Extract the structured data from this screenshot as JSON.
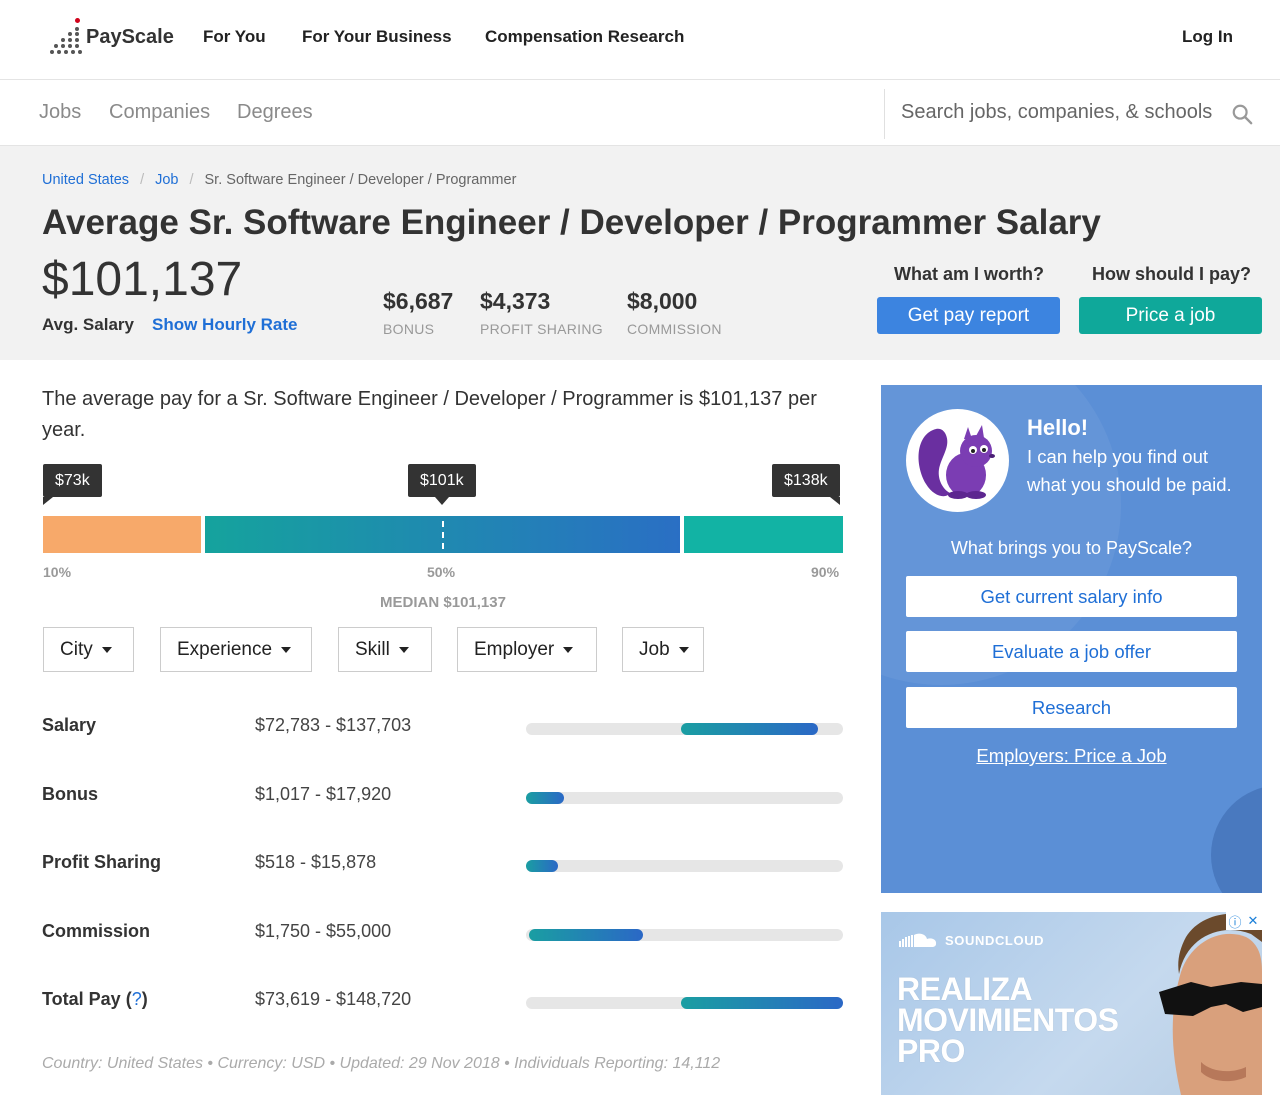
{
  "topnav": {
    "brand": "PayScale",
    "links": [
      "For You",
      "For Your Business",
      "Compensation Research"
    ],
    "login": "Log In"
  },
  "subnav": {
    "links": [
      "Jobs",
      "Companies",
      "Degrees"
    ],
    "search_placeholder": "Search jobs, companies, & schools"
  },
  "breadcrumb": {
    "items": [
      "United States",
      "Job"
    ],
    "current": "Sr. Software Engineer / Developer / Programmer"
  },
  "header": {
    "title": "Average Sr. Software Engineer / Developer / Programmer Salary",
    "avg_salary": "$101,137",
    "avg_label": "Avg. Salary",
    "hourly_link": "Show Hourly Rate",
    "stats": [
      {
        "value": "$6,687",
        "label": "BONUS"
      },
      {
        "value": "$4,373",
        "label": "PROFIT SHARING"
      },
      {
        "value": "$8,000",
        "label": "COMMISSION"
      }
    ],
    "cta": [
      {
        "question": "What am I worth?",
        "button": "Get pay report"
      },
      {
        "question": "How should I pay?",
        "button": "Price a job"
      }
    ]
  },
  "summary": "The average pay for a Sr. Software Engineer / Developer / Programmer is $101,137 per year.",
  "distribution": {
    "tooltips": {
      "low": "$73k",
      "mid": "$101k",
      "high": "$138k"
    },
    "percentiles": {
      "p10": "10%",
      "p50": "50%",
      "p90": "90%"
    },
    "median_label": "MEDIAN $101,137"
  },
  "filters": [
    "City",
    "Experience",
    "Skill",
    "Employer",
    "Job"
  ],
  "ranges": [
    {
      "label": "Salary",
      "range": "$72,783 - $137,703",
      "start": 0.49,
      "end": 0.92
    },
    {
      "label": "Bonus",
      "range": "$1,017 - $17,920",
      "start": 0.0,
      "end": 0.12
    },
    {
      "label": "Profit Sharing",
      "range": "$518 - $15,878",
      "start": 0.0,
      "end": 0.1
    },
    {
      "label": "Commission",
      "range": "$1,750 - $55,000",
      "start": 0.01,
      "end": 0.37
    },
    {
      "label": "Total Pay",
      "help": "?",
      "range": "$73,619 - $148,720",
      "start": 0.49,
      "end": 1.0
    }
  ],
  "footnote": "Country: United States  •  Currency: USD  •  Updated: 29 Nov 2018  •  Individuals Reporting: 14,112",
  "sidebar": {
    "hello": "Hello!",
    "hello_sub": "I can help you find out what you should be paid.",
    "prompt": "What brings you to PayScale?",
    "options": [
      "Get current salary info",
      "Evaluate a job offer",
      "Research"
    ],
    "employer_link": "Employers: Price a Job"
  },
  "ad": {
    "brand": "SOUNDCLOUD",
    "headline_lines": [
      "REALIZA",
      "MOVIMIENTOS",
      "PRO"
    ]
  },
  "colors": {
    "accent_blue": "#1f6fd6",
    "button_blue": "#3c84e0",
    "button_teal": "#0fa89a",
    "low_segment": "#f7a96a",
    "sidebar_bg": "#5b8fd6"
  }
}
